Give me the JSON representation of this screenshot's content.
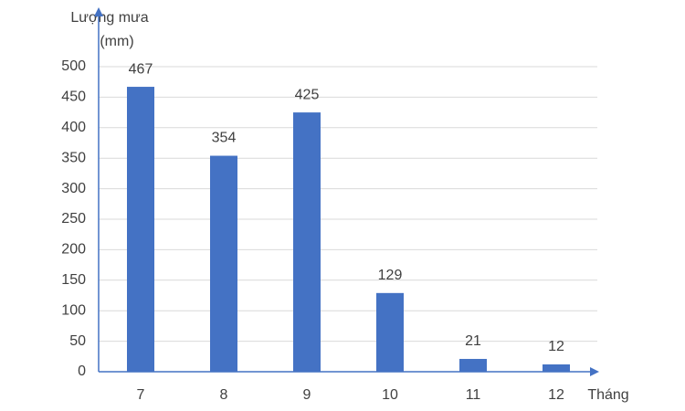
{
  "chart_data": {
    "type": "bar",
    "y_label": [
      "Lượng mưa",
      "(mm)"
    ],
    "x_label": "Tháng",
    "categories": [
      "7",
      "8",
      "9",
      "10",
      "11",
      "12"
    ],
    "values": [
      467,
      354,
      425,
      129,
      21,
      12
    ],
    "color": "#4472c4",
    "ylim": [
      0,
      500
    ],
    "yticks": [
      0,
      50,
      100,
      150,
      200,
      250,
      300,
      350,
      400,
      450,
      500
    ],
    "grid": true
  }
}
